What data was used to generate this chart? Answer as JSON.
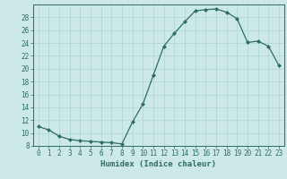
{
  "x": [
    0,
    1,
    2,
    3,
    4,
    5,
    6,
    7,
    8,
    9,
    10,
    11,
    12,
    13,
    14,
    15,
    16,
    17,
    18,
    19,
    20,
    21,
    22,
    23
  ],
  "y": [
    11,
    10.5,
    9.5,
    9,
    8.8,
    8.7,
    8.6,
    8.5,
    8.3,
    11.7,
    14.5,
    19,
    23.5,
    25.5,
    27.3,
    29,
    29.2,
    29.3,
    28.8,
    27.8,
    24.1,
    24.3,
    23.5,
    20.5
  ],
  "xlabel": "Humidex (Indice chaleur)",
  "xlim": [
    -0.5,
    23.5
  ],
  "ylim": [
    8,
    30
  ],
  "yticks": [
    8,
    10,
    12,
    14,
    16,
    18,
    20,
    22,
    24,
    26,
    28
  ],
  "xtick_labels": [
    "0",
    "1",
    "2",
    "3",
    "4",
    "5",
    "6",
    "7",
    "8",
    "9",
    "10",
    "11",
    "12",
    "13",
    "14",
    "15",
    "16",
    "17",
    "18",
    "19",
    "20",
    "21",
    "22",
    "23"
  ],
  "line_color": "#2e6e5e",
  "marker_color": "#2e6e5e",
  "bg_color": "#cce8e8",
  "grid_color": "#aad4d4",
  "label_color": "#2e6e5e",
  "tick_color": "#2e6e5e",
  "label_fontsize": 6.5,
  "tick_fontsize": 5.5
}
